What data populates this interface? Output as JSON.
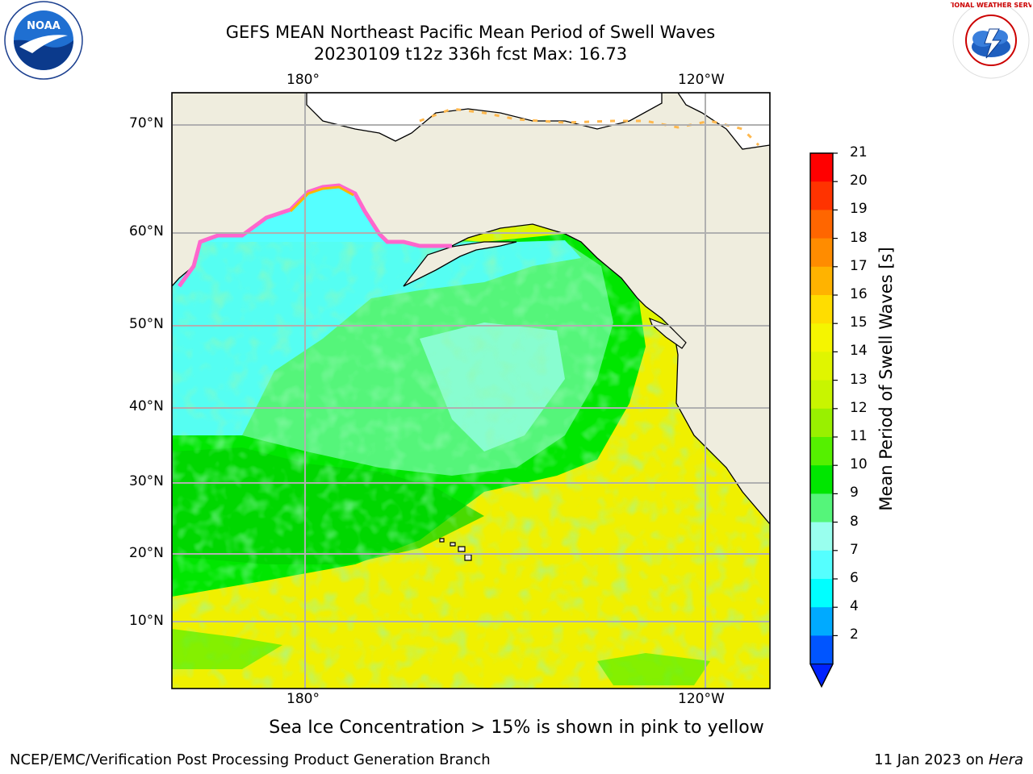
{
  "title_line1": "GEFS MEAN Northeast Pacific Mean Period of Swell Waves",
  "title_line2": "20230109 t12z 336h fcst   Max: 16.73",
  "axes": {
    "top_ticks": [
      "180°",
      "120°W"
    ],
    "bottom_ticks": [
      "180°",
      "120°W"
    ],
    "left_ticks": [
      "70°N",
      "60°N",
      "50°N",
      "40°N",
      "30°N",
      "20°N",
      "10°N"
    ]
  },
  "colorbar": {
    "label": "Mean Period of Swell Waves [s]",
    "ticks": [
      "21",
      "20",
      "19",
      "18",
      "17",
      "16",
      "15",
      "14",
      "13",
      "12",
      "11",
      "10",
      "9",
      "8",
      "7",
      "6",
      "4",
      "2"
    ],
    "colors": [
      "#ff0000",
      "#ff3300",
      "#ff6600",
      "#ff8c00",
      "#ffb300",
      "#ffdd00",
      "#f5f500",
      "#e0f500",
      "#c8f500",
      "#99f000",
      "#55f000",
      "#00e600",
      "#55f57a",
      "#99ffee",
      "#55ffff",
      "#00ffff",
      "#00aaff",
      "#0055ff"
    ],
    "underflow_color": "#0022ff"
  },
  "legend_note": "Sea Ice Concentration > 15% is shown in pink to yellow",
  "footer_left": "NCEP/EMC/Verification Post Processing Product Generation Branch",
  "footer_date": "11 Jan 2023 on",
  "footer_host": "Hera",
  "logos": {
    "left": "noaa-logo",
    "right": "national-weather-service-logo",
    "left_text": "NOAA",
    "right_text": "NATIONAL WEATHER SERVICE"
  },
  "colors": {
    "land": "#efedde",
    "grid": "#b0b0b0",
    "ocean_cool": "#55ffff",
    "ocean_mid": "#00e600",
    "ocean_warm": "#e8f500",
    "sea_ice": "#ff66cc"
  }
}
